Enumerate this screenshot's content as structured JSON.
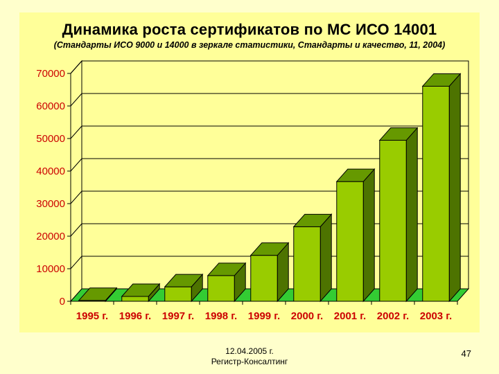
{
  "slide": {
    "footer_date": "12.04.2005 г.",
    "footer_org": "Регистр-Консалтинг",
    "page_number": "47"
  },
  "colors": {
    "background": "#ffffcc",
    "plot_area": "#ffff99",
    "bar_front": "#99cc00",
    "bar_top": "#669900",
    "bar_side": "#4d7300",
    "floor": "#33cc33",
    "axis_text": "#cc0000"
  },
  "chart_data": {
    "type": "bar",
    "title": "Динамика роста сертификатов по МС ИСО 14001",
    "subtitle": "(Стандарты ИСО 9000 и 14000 в зеркале статистики, Стандарты и качество, 11, 2004)",
    "categories": [
      "1995 г.",
      "1996 г.",
      "1997 г.",
      "1998 г.",
      "1999 г.",
      "2000 г.",
      "2001 г.",
      "2002 г.",
      "2003 г."
    ],
    "values": [
      260,
      1490,
      4440,
      7890,
      14110,
      22900,
      36770,
      49460,
      66070
    ],
    "ylim": [
      0,
      70000
    ],
    "yticks": [
      "0",
      "10000",
      "20000",
      "30000",
      "40000",
      "50000",
      "60000",
      "70000"
    ],
    "grid": true,
    "xlabel": "",
    "ylabel": ""
  }
}
